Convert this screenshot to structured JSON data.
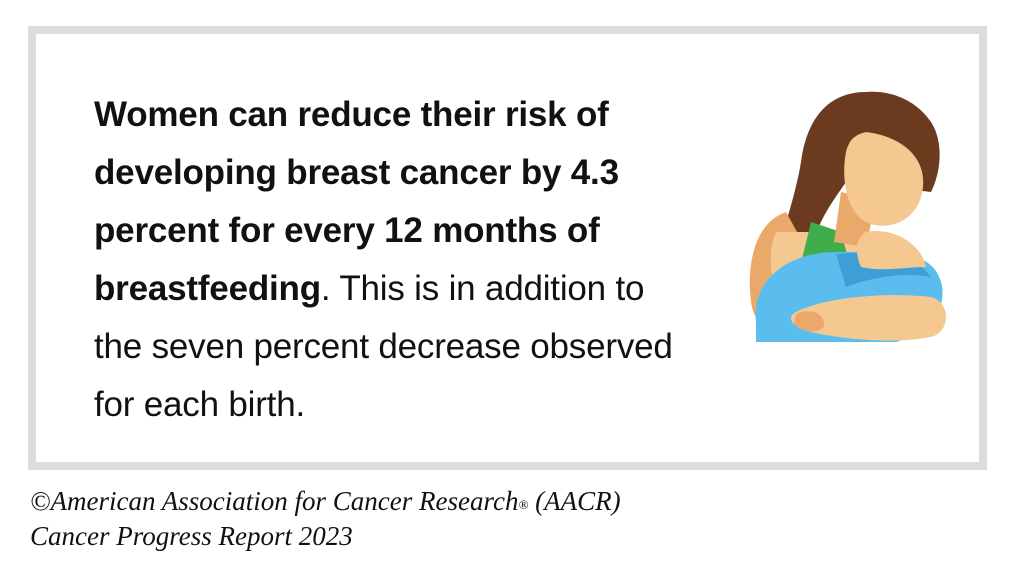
{
  "fact": {
    "bold_text": "Women can reduce their risk of developing breast cancer by 4.3 percent for every 12 months of breastfeeding",
    "regular_text": ". This is in addition to the seven percent decrease observed for each birth."
  },
  "illustration": {
    "icon": "breastfeeding-mother-icon",
    "colors": {
      "hair": "#6b3a1f",
      "skin": "#f5c891",
      "skin_shadow": "#eaa96b",
      "top": "#3fae4a",
      "blanket": "#5bbdee",
      "blanket_shadow": "#3e9fd6"
    }
  },
  "credit": {
    "line1_main": "©American Association for Cancer Research",
    "line1_mark": "®",
    "line1_tail": " (AACR)",
    "line2": "Cancer Progress Report 2023"
  },
  "colors": {
    "border": "#dcdcdc",
    "text": "#111111",
    "background": "#ffffff"
  }
}
